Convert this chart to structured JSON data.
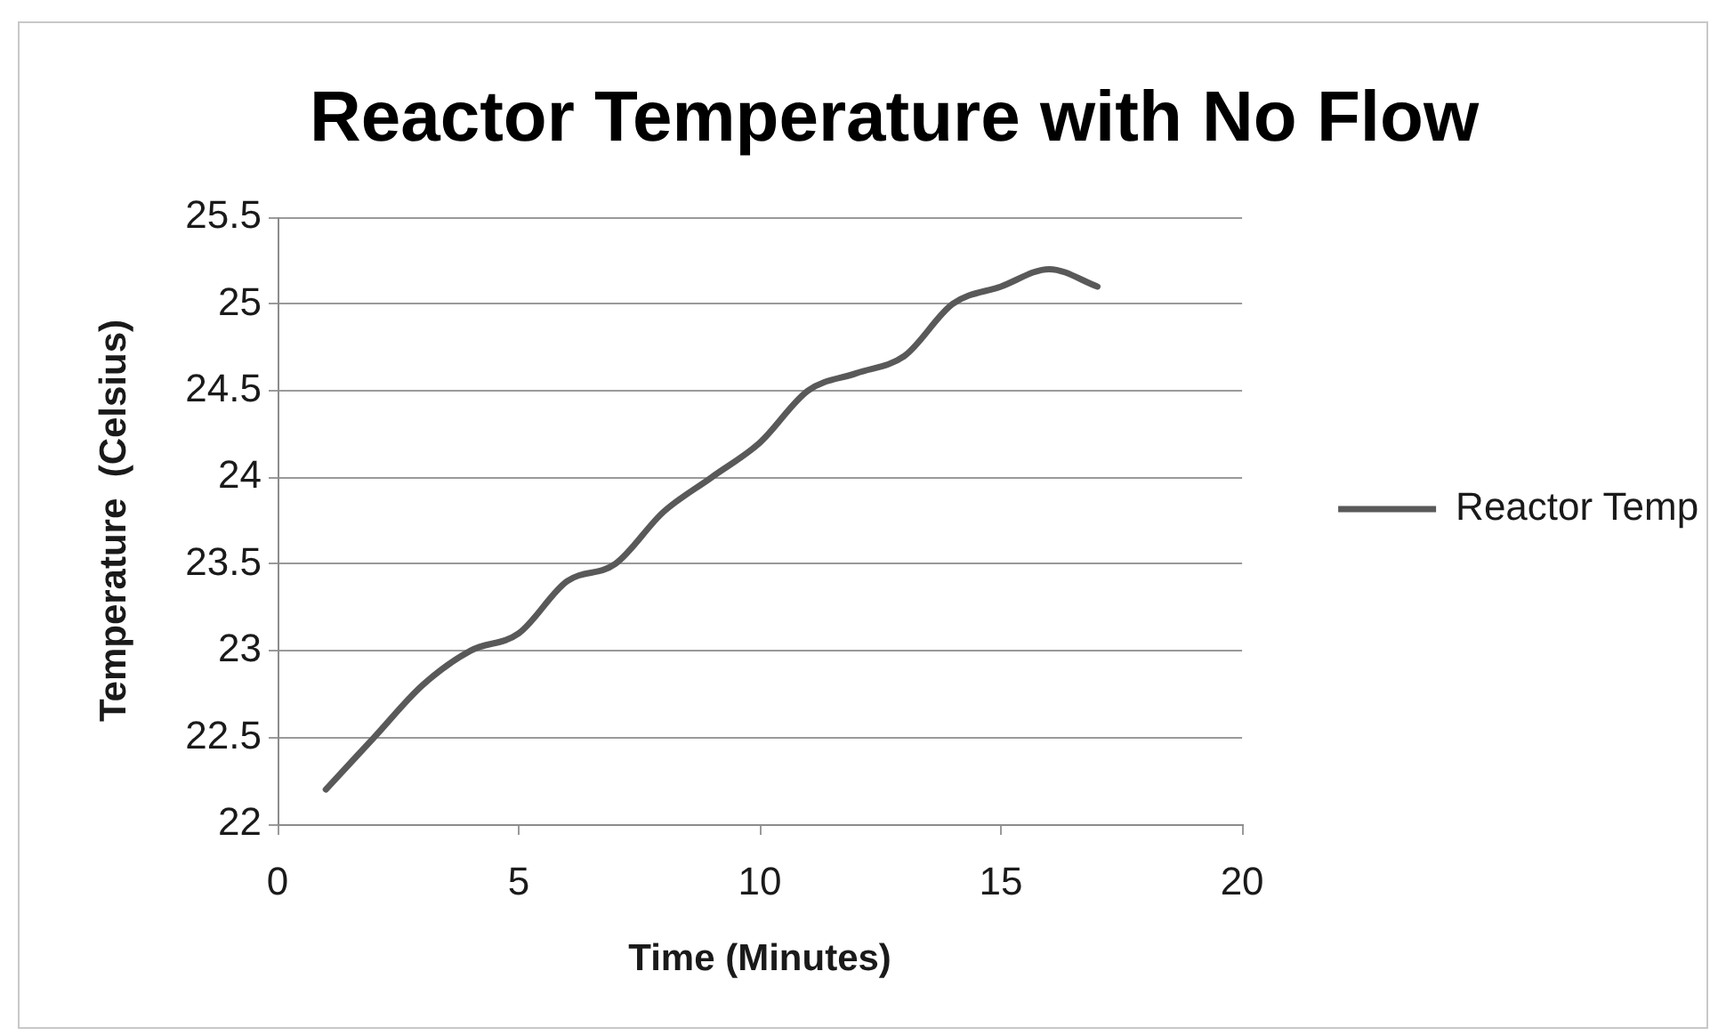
{
  "chart_data": {
    "type": "line",
    "title": "Reactor Temperature with No Flow",
    "xlabel": "Time (Minutes)",
    "ylabel": "Temperature  (Celsius)",
    "x": [
      1,
      2,
      3,
      4,
      5,
      6,
      7,
      8,
      9,
      10,
      11,
      12,
      13,
      14,
      15,
      16,
      17
    ],
    "series": [
      {
        "name": "Reactor Temp",
        "color": "#595959",
        "values": [
          22.2,
          22.5,
          22.8,
          23.0,
          23.1,
          23.4,
          23.5,
          23.8,
          24.0,
          24.2,
          24.5,
          24.6,
          24.7,
          25.0,
          25.1,
          25.2,
          25.1
        ]
      }
    ],
    "xlim": [
      0,
      20
    ],
    "xticks": [
      0,
      5,
      10,
      15,
      20
    ],
    "ylim": [
      22,
      25.5
    ],
    "yticks": [
      22,
      22.5,
      23,
      23.5,
      24,
      24.5,
      25,
      25.5
    ],
    "grid": "y",
    "legend": "right",
    "marker": "none"
  }
}
